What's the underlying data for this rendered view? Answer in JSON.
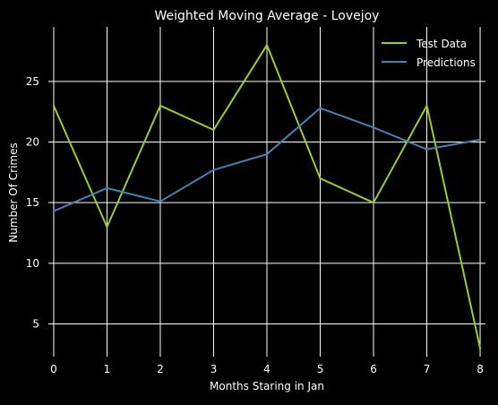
{
  "chart_data": {
    "type": "line",
    "title": "Weighted Moving Average - Lovejoy",
    "xlabel": "Months Staring in Jan",
    "ylabel": "Number Of Crimes",
    "x": [
      0,
      1,
      2,
      3,
      4,
      5,
      6,
      7,
      8
    ],
    "xlim": [
      -0.1,
      8.1
    ],
    "ylim": [
      2.3,
      29.5
    ],
    "xticks": [
      0,
      1,
      2,
      3,
      4,
      5,
      6,
      7,
      8
    ],
    "yticks": [
      5,
      10,
      15,
      20,
      25
    ],
    "grid": true,
    "legend_position": "top-right",
    "background": "#000000",
    "text_color": "#ffffff",
    "grid_color": "#ffffff",
    "series": [
      {
        "name": "Test Data",
        "color": "#9acd32",
        "values": [
          23,
          13,
          23,
          21,
          28,
          17,
          15,
          23,
          3
        ]
      },
      {
        "name": "Predictions",
        "color": "#4682b4",
        "values": [
          14.3,
          16.2,
          15.1,
          17.7,
          19.0,
          22.8,
          21.2,
          19.4,
          20.2
        ]
      }
    ]
  }
}
